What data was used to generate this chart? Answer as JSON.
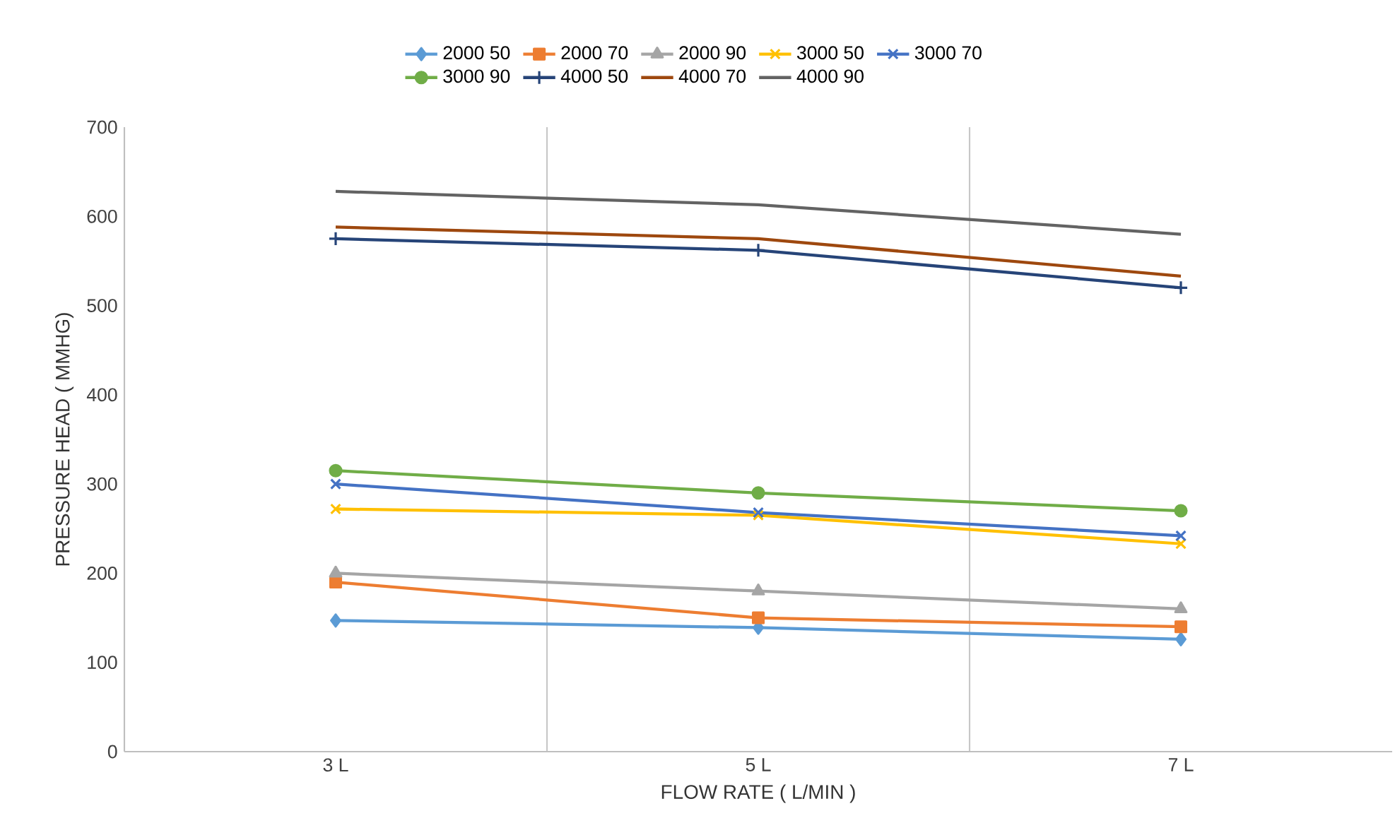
{
  "chart_data": {
    "type": "line",
    "xlabel": "FLOW RATE ( L/MIN )",
    "ylabel": "PRESSURE HEAD ( MMHG)",
    "categories": [
      "3 L",
      "5 L",
      "7 L"
    ],
    "ylim": [
      0,
      700
    ],
    "yticks": [
      0,
      100,
      200,
      300,
      400,
      500,
      600,
      700
    ],
    "grid": "x",
    "legend": "top",
    "series": [
      {
        "name": "2000 50",
        "color": "#5b9bd5",
        "marker": "diamond",
        "values": [
          147,
          139,
          126
        ]
      },
      {
        "name": "2000 70",
        "color": "#ed7d31",
        "marker": "square",
        "values": [
          190,
          150,
          140
        ]
      },
      {
        "name": "2000 90",
        "color": "#a5a5a5",
        "marker": "triangle",
        "values": [
          200,
          180,
          160
        ]
      },
      {
        "name": "3000 50",
        "color": "#ffc000",
        "marker": "cross",
        "values": [
          272,
          265,
          233
        ]
      },
      {
        "name": "3000 70",
        "color": "#4472c4",
        "marker": "cross",
        "values": [
          300,
          268,
          242
        ]
      },
      {
        "name": "3000 90",
        "color": "#70ad47",
        "marker": "circle",
        "values": [
          315,
          290,
          270
        ]
      },
      {
        "name": "4000 50",
        "color": "#264478",
        "marker": "plus",
        "values": [
          575,
          562,
          520
        ]
      },
      {
        "name": "4000 70",
        "color": "#9e480e",
        "marker": "none",
        "values": [
          588,
          575,
          533
        ]
      },
      {
        "name": "4000 90",
        "color": "#636363",
        "marker": "none",
        "values": [
          628,
          613,
          580
        ]
      }
    ]
  }
}
